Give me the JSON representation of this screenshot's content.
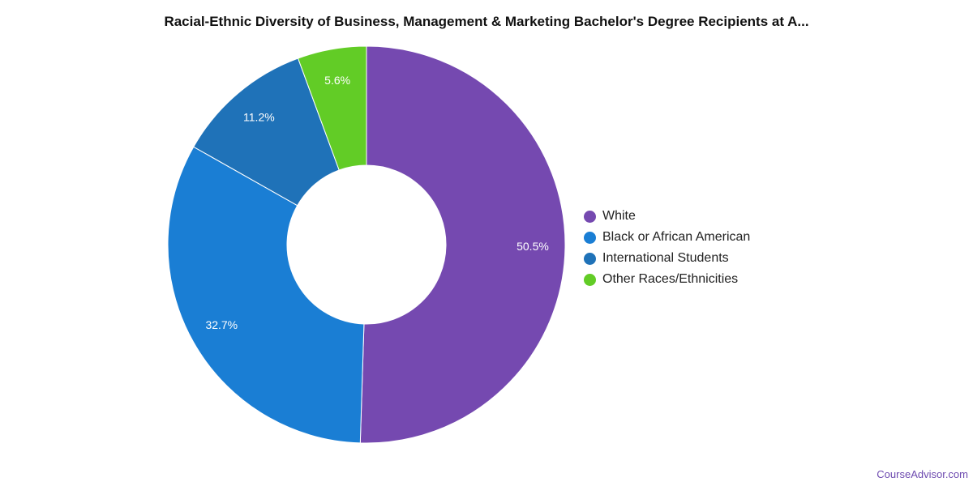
{
  "chart_data": {
    "type": "pie",
    "title": "Racial-Ethnic Diversity of Business, Management & Marketing Bachelor's Degree Recipients at A...",
    "categories": [
      "White",
      "Black or African American",
      "International Students",
      "Other Races/Ethnicities"
    ],
    "values": [
      50.5,
      32.7,
      11.2,
      5.6
    ],
    "value_labels": [
      "50.5%",
      "32.7%",
      "11.2%",
      "5.6%"
    ],
    "colors": [
      "#7549b0",
      "#1a7ed4",
      "#1f72b8",
      "#62cc26"
    ],
    "donut": true,
    "legend_position": "right"
  },
  "watermark": "CourseAdvisor.com"
}
